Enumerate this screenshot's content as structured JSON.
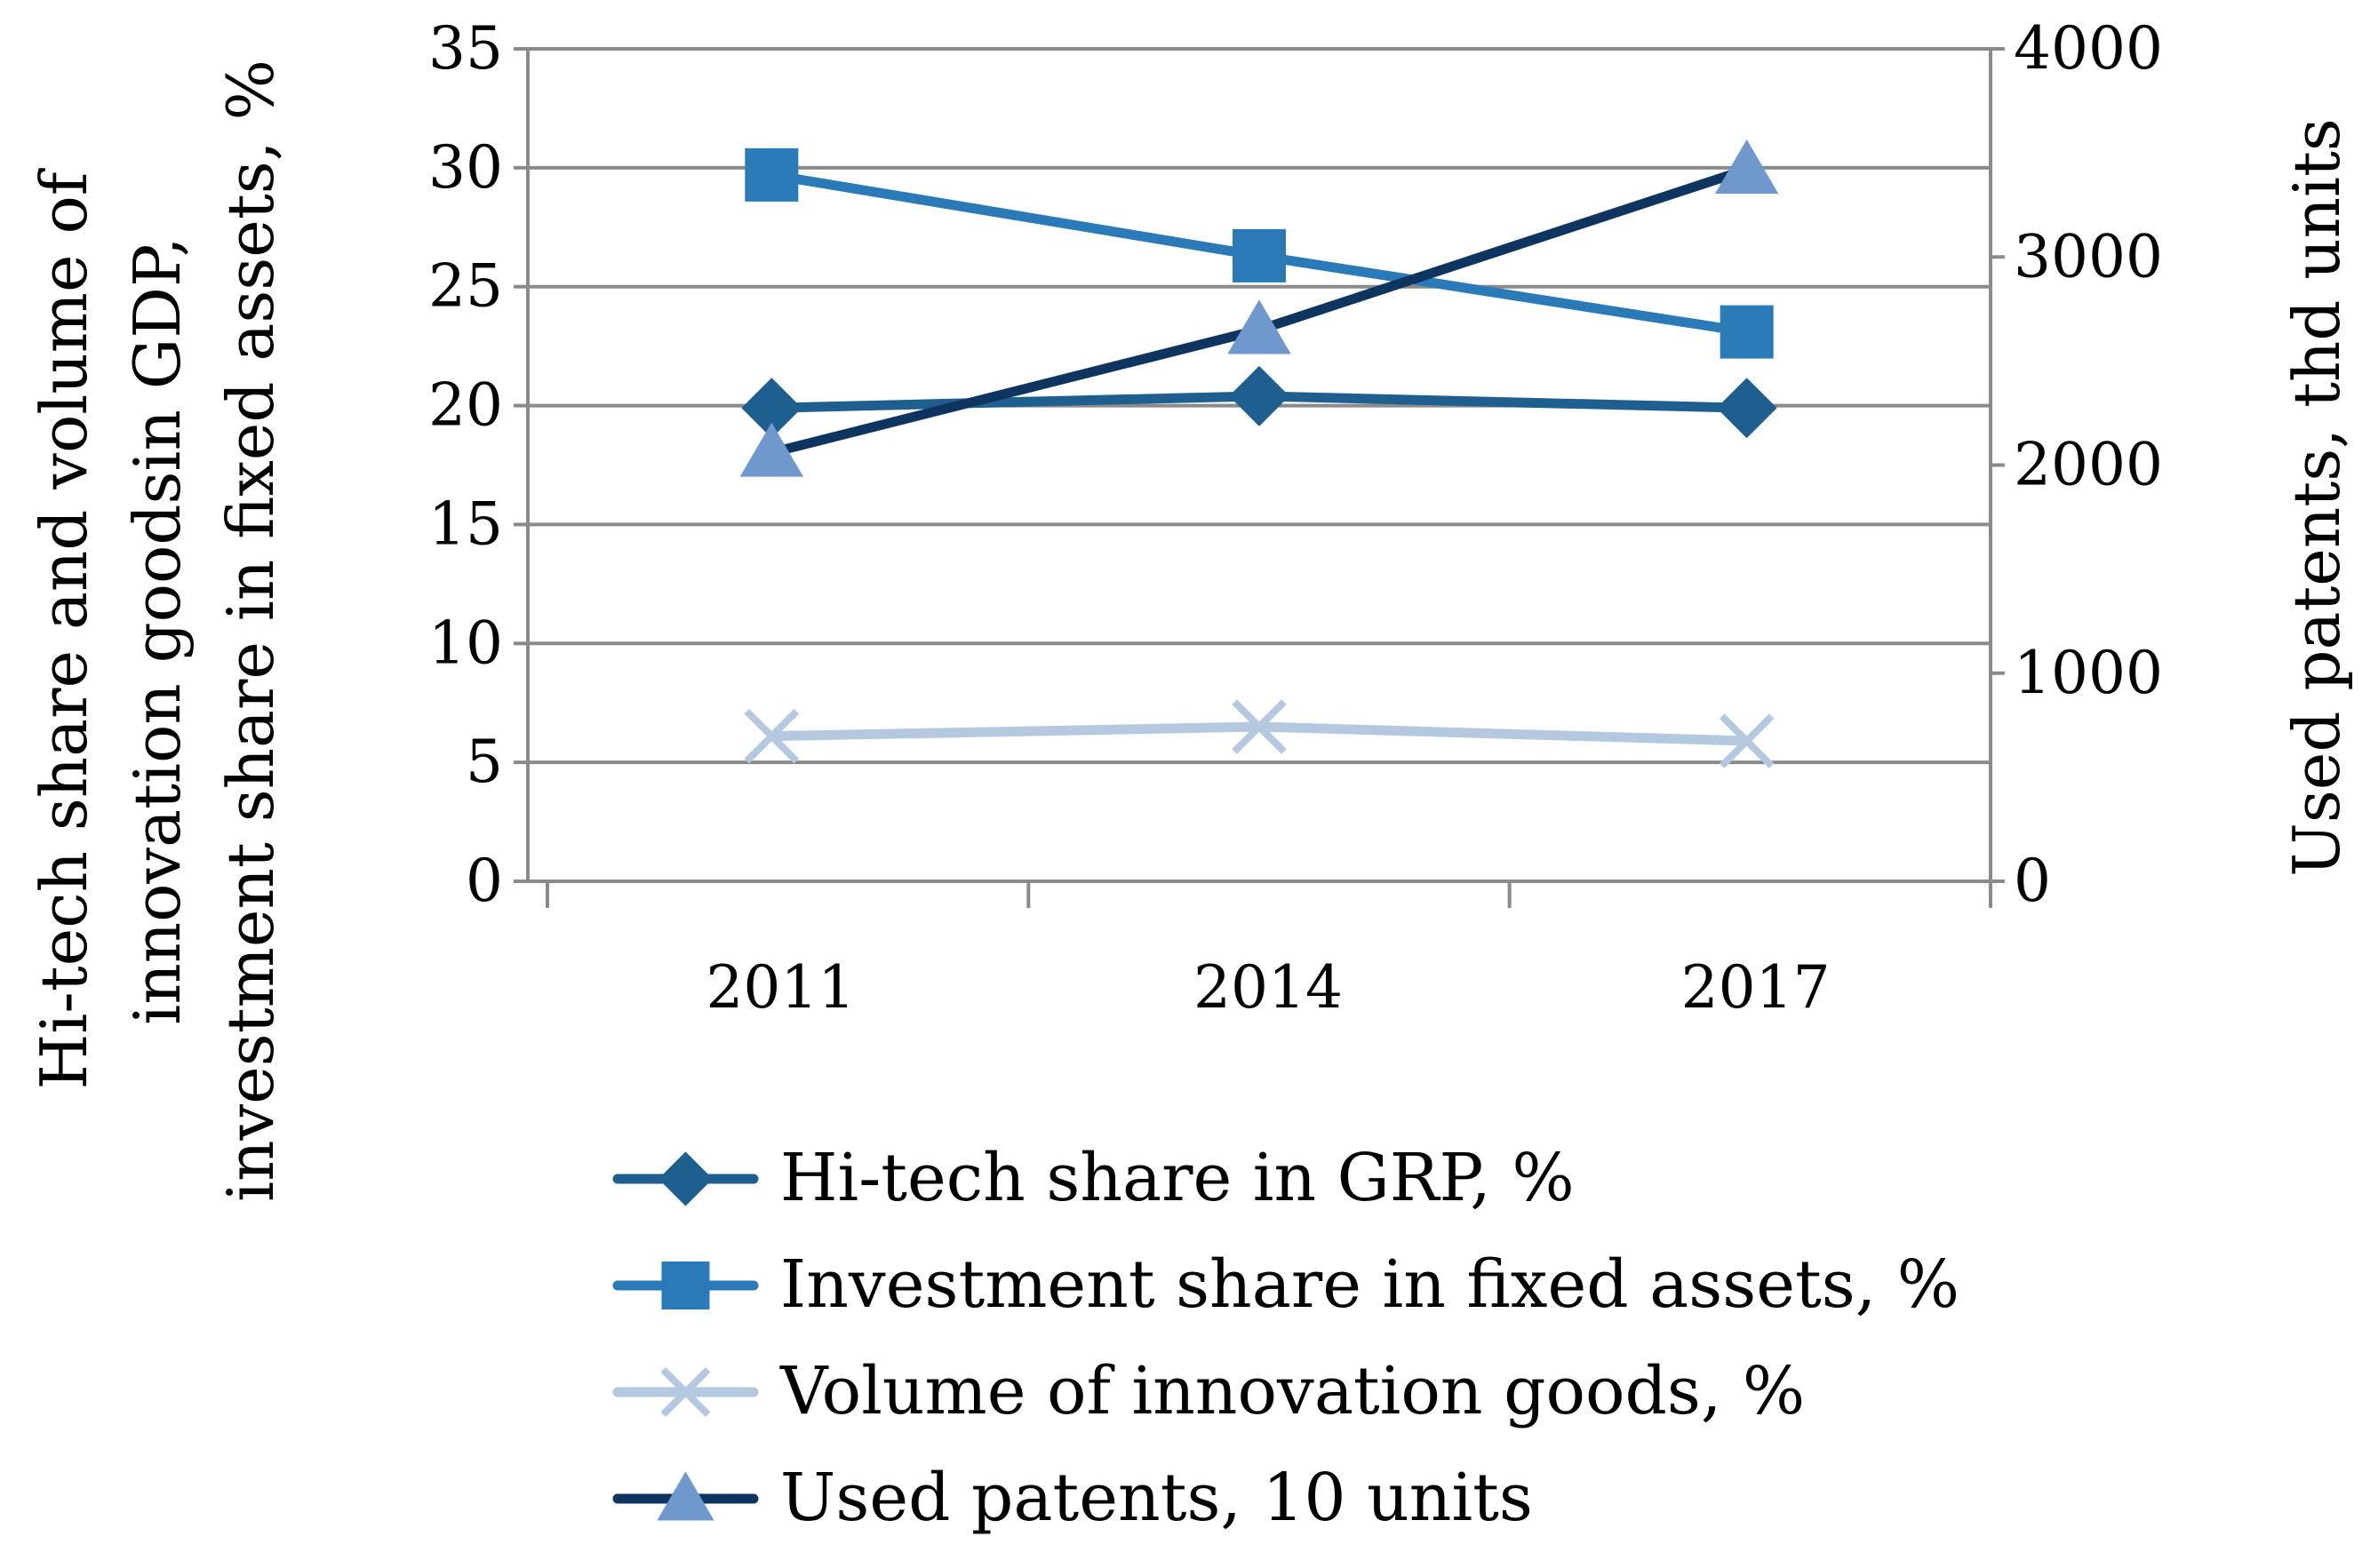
{
  "chart_data": {
    "type": "line",
    "categories": [
      "2011",
      "2014",
      "2017"
    ],
    "left_axis": {
      "title_lines": [
        "Hi-tech share and volume of",
        "innovation goodsin GDP,",
        "investment share in fixed assets, %"
      ],
      "ylim": [
        0,
        35
      ],
      "ticks": [
        0,
        5,
        10,
        15,
        20,
        25,
        30,
        35
      ]
    },
    "right_axis": {
      "title": "Used patents, thd units",
      "ylim": [
        0,
        4000
      ],
      "ticks": [
        0,
        1000,
        2000,
        3000,
        4000
      ]
    },
    "grid": true,
    "legend_position": "bottom",
    "series": [
      {
        "name": "Hi-tech share in GRP, %",
        "axis": "left",
        "values": [
          19.9,
          20.4,
          19.9
        ],
        "color": "#1f5f8f",
        "marker": "diamond"
      },
      {
        "name": "Investment share in fixed assets, %",
        "axis": "left",
        "values": [
          29.7,
          26.3,
          23.1
        ],
        "color": "#2a7ab8",
        "marker": "square"
      },
      {
        "name": "Volume of innovation goods, %",
        "axis": "left",
        "values": [
          6.1,
          6.5,
          5.9
        ],
        "color": "#b4c8e0",
        "marker": "x"
      },
      {
        "name": "Used  patents, 10 units",
        "axis": "right",
        "values": [
          2060,
          2650,
          3420
        ],
        "color": "#0e3560",
        "marker": "triangle",
        "marker_color": "#6f98cc"
      }
    ]
  }
}
